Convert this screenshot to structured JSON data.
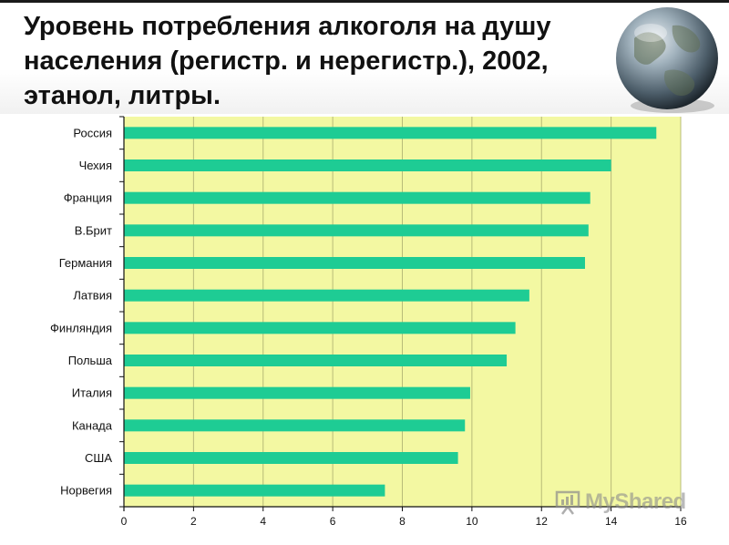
{
  "slide": {
    "title": "Уровень потребления алкоголя на душу\nнаселения (регистр. и нерегистр.), 2002,\nэтанол, литры."
  },
  "watermark": {
    "text": "MyShared",
    "icon": "presentation-board-icon"
  },
  "colors": {
    "bar": "#1ecc94",
    "plot_bg": "#f3f8a2",
    "grid": "#b8bb78",
    "axis": "#111111"
  },
  "chart_data": {
    "type": "bar",
    "orientation": "horizontal",
    "title": "Уровень потребления алкоголя на душу населения (регистр. и нерегистр.), 2002, этанол, литры.",
    "categories": [
      "Россия",
      "Чехия",
      "Франция",
      "В.Брит",
      "Германия",
      "Латвия",
      "Финляндия",
      "Польша",
      "Италия",
      "Канада",
      "США",
      "Норвегия"
    ],
    "values": [
      15.3,
      14.0,
      13.4,
      13.35,
      13.25,
      11.65,
      11.25,
      11.0,
      9.95,
      9.8,
      9.6,
      7.5
    ],
    "xlim": [
      0,
      16
    ],
    "xticks": [
      0,
      2,
      4,
      6,
      8,
      10,
      12,
      14,
      16
    ],
    "grid": true,
    "legend": "none"
  }
}
